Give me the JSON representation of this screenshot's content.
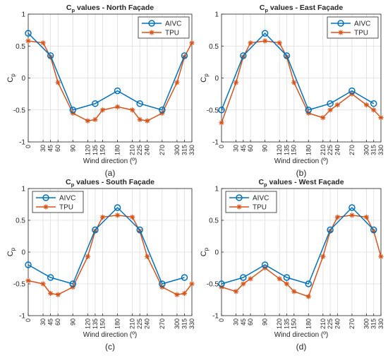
{
  "chart_data": [
    {
      "type": "line",
      "title_main": "C",
      "title_sub": "p",
      "title_rest": " values - North Façade",
      "xlabel": "Wind direction (º)",
      "ylabel_main": "C",
      "ylabel_sub": "p",
      "caption": "(a)",
      "xlim": [
        0,
        330
      ],
      "ylim": [
        -1,
        1
      ],
      "xticks": [
        0,
        30,
        45,
        60,
        90,
        120,
        135,
        150,
        180,
        210,
        225,
        240,
        270,
        300,
        315,
        330
      ],
      "yticks": [
        -1,
        -0.5,
        0,
        0.5,
        1
      ],
      "grid": true,
      "legend_position": "top-right",
      "series": [
        {
          "name": "AIVC",
          "color": "#0072BD",
          "marker": "circle",
          "x": [
            0,
            45,
            90,
            135,
            180,
            225,
            270,
            315
          ],
          "y": [
            0.7,
            0.35,
            -0.5,
            -0.4,
            -0.2,
            -0.4,
            -0.5,
            0.35
          ]
        },
        {
          "name": "TPU",
          "color": "#D95319",
          "marker": "star",
          "x": [
            0,
            30,
            45,
            60,
            90,
            120,
            135,
            150,
            180,
            210,
            225,
            240,
            270,
            300,
            315,
            330
          ],
          "y": [
            0.58,
            0.55,
            0.33,
            -0.07,
            -0.55,
            -0.67,
            -0.65,
            -0.5,
            -0.45,
            -0.5,
            -0.65,
            -0.67,
            -0.55,
            -0.07,
            0.33,
            0.55
          ]
        }
      ]
    },
    {
      "type": "line",
      "title_main": "C",
      "title_sub": "p",
      "title_rest": " values - East Façade",
      "xlabel": "Wind direction (º)",
      "ylabel_main": "C",
      "ylabel_sub": "p",
      "caption": "(b)",
      "xlim": [
        0,
        330
      ],
      "ylim": [
        -1,
        1
      ],
      "xticks": [
        0,
        30,
        45,
        60,
        90,
        120,
        135,
        150,
        180,
        210,
        225,
        240,
        270,
        300,
        315,
        330
      ],
      "yticks": [
        -1,
        -0.5,
        0,
        0.5,
        1
      ],
      "grid": true,
      "legend_position": "top-right",
      "series": [
        {
          "name": "AIVC",
          "color": "#0072BD",
          "marker": "circle",
          "x": [
            0,
            45,
            90,
            135,
            180,
            225,
            270,
            315
          ],
          "y": [
            -0.5,
            0.35,
            0.7,
            0.35,
            -0.5,
            -0.4,
            -0.2,
            -0.4
          ]
        },
        {
          "name": "TPU",
          "color": "#D95319",
          "marker": "star",
          "x": [
            0,
            30,
            45,
            60,
            90,
            120,
            135,
            150,
            180,
            210,
            225,
            240,
            270,
            300,
            315,
            330
          ],
          "y": [
            -0.7,
            -0.07,
            0.33,
            0.55,
            0.58,
            0.55,
            0.33,
            -0.07,
            -0.55,
            -0.62,
            -0.5,
            -0.42,
            -0.25,
            -0.42,
            -0.5,
            -0.62
          ]
        }
      ]
    },
    {
      "type": "line",
      "title_main": "C",
      "title_sub": "p",
      "title_rest": " values - South Façade",
      "xlabel": "Wind direction (º)",
      "ylabel_main": "C",
      "ylabel_sub": "p",
      "caption": "(c)",
      "xlim": [
        0,
        330
      ],
      "ylim": [
        -1,
        1
      ],
      "xticks": [
        0,
        30,
        45,
        60,
        90,
        120,
        135,
        150,
        180,
        210,
        225,
        240,
        270,
        300,
        315,
        330
      ],
      "yticks": [
        -1,
        -0.5,
        0,
        0.5,
        1
      ],
      "grid": true,
      "legend_position": "top-left",
      "series": [
        {
          "name": "AIVC",
          "color": "#0072BD",
          "marker": "circle",
          "x": [
            0,
            45,
            90,
            135,
            180,
            225,
            270,
            315
          ],
          "y": [
            -0.2,
            -0.4,
            -0.5,
            0.35,
            0.7,
            0.35,
            -0.5,
            -0.4
          ]
        },
        {
          "name": "TPU",
          "color": "#D95319",
          "marker": "star",
          "x": [
            0,
            30,
            45,
            60,
            90,
            120,
            135,
            150,
            180,
            210,
            225,
            240,
            270,
            300,
            315,
            330
          ],
          "y": [
            -0.45,
            -0.5,
            -0.65,
            -0.67,
            -0.55,
            -0.07,
            0.33,
            0.55,
            0.58,
            0.55,
            0.33,
            -0.07,
            -0.55,
            -0.67,
            -0.65,
            -0.5
          ]
        }
      ]
    },
    {
      "type": "line",
      "title_main": "C",
      "title_sub": "p",
      "title_rest": " values - West Façade",
      "xlabel": "Wind direction (º)",
      "ylabel_main": "C",
      "ylabel_sub": "p",
      "caption": "(d)",
      "xlim": [
        0,
        330
      ],
      "ylim": [
        -1,
        1
      ],
      "xticks": [
        0,
        30,
        45,
        60,
        90,
        120,
        135,
        150,
        180,
        210,
        225,
        240,
        270,
        300,
        315,
        330
      ],
      "yticks": [
        -1,
        -0.5,
        0,
        0.5,
        1
      ],
      "grid": true,
      "legend_position": "top-left",
      "series": [
        {
          "name": "AIVC",
          "color": "#0072BD",
          "marker": "circle",
          "x": [
            0,
            45,
            90,
            135,
            180,
            225,
            270,
            315
          ],
          "y": [
            -0.5,
            -0.4,
            -0.2,
            -0.4,
            -0.5,
            0.35,
            0.7,
            0.35
          ]
        },
        {
          "name": "TPU",
          "color": "#D95319",
          "marker": "star",
          "x": [
            0,
            30,
            45,
            60,
            90,
            120,
            135,
            150,
            180,
            210,
            225,
            240,
            270,
            300,
            315,
            330
          ],
          "y": [
            -0.55,
            -0.62,
            -0.5,
            -0.42,
            -0.25,
            -0.42,
            -0.5,
            -0.62,
            -0.7,
            -0.07,
            0.33,
            0.55,
            0.58,
            0.55,
            0.33,
            -0.07
          ]
        }
      ]
    }
  ]
}
